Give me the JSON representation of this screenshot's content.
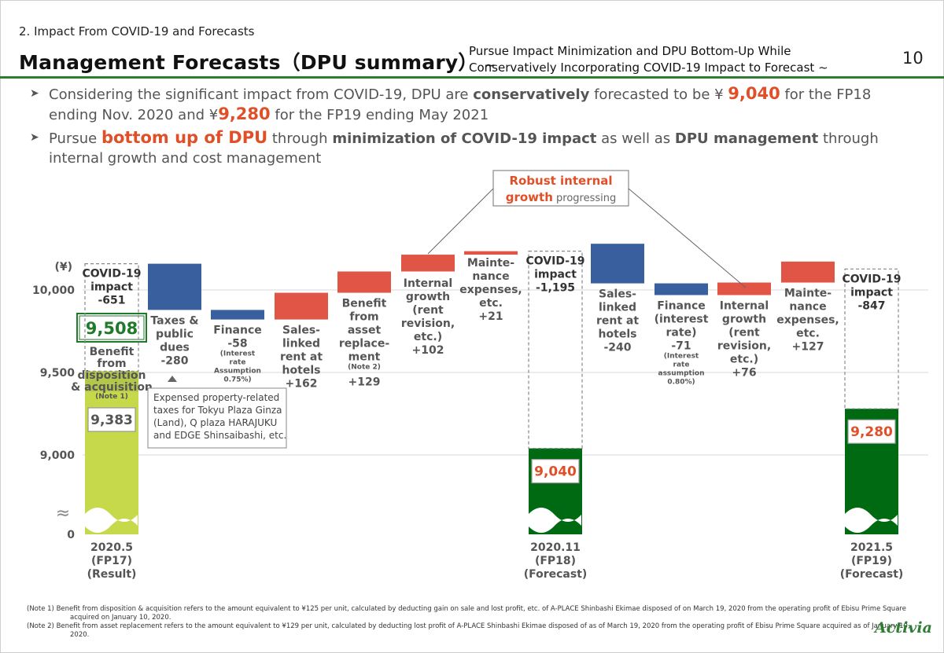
{
  "header": {
    "section": "2. Impact From COVID-19 and Forecasts",
    "title": "Management Forecasts（DPU summary）",
    "tilde": "~",
    "subtitle_line1": "Pursue Impact Minimization and DPU Bottom-Up While",
    "subtitle_line2": "Conservatively Incorporating COVID-19 Impact to Forecast",
    "page_number": "10"
  },
  "bullets": {
    "b1": {
      "t1": "Considering the significant impact from COVID-19, DPU are ",
      "t2": "conservatively",
      "t3": " forecasted to be ¥ ",
      "t4": "9,040",
      "t5": " for the FP18 ending Nov. 2020 and ¥",
      "t6": "9,280",
      "t7": " for the FP19 ending May 2021"
    },
    "b2": {
      "t1": "Pursue ",
      "t2": "bottom up of DPU",
      "t3": " through ",
      "t4": "minimization of COVID-19 impact",
      "t5": " as well as ",
      "t6": "DPU management",
      "t7": " through internal growth and cost management"
    }
  },
  "callout": {
    "line1": "Robust internal",
    "line2_bold": "growth",
    "line2_rest": " progressing"
  },
  "property_note": [
    "Expensed property-related",
    "taxes for Tokyu Plaza Ginza",
    "(Land), Q plaza HARAJUKU",
    "and EDGE Shinsaibashi, etc."
  ],
  "chart_data": {
    "type": "waterfall",
    "unit_label": "(¥)",
    "y_ticks": [
      "10,000",
      "9,500",
      "9,000",
      "0"
    ],
    "axis_break": "≈",
    "colors": {
      "actual": "#c5d94a",
      "forecast": "#006a12",
      "positive": "#e05545",
      "negative": "#3a5f9e",
      "covid_label": "#333333",
      "value_orange": "#e05028"
    },
    "totals": [
      {
        "category": [
          "2020.5",
          "(FP17)",
          "(Result)"
        ],
        "value": 9383,
        "label": "9,383"
      },
      {
        "category": [
          "2020.11",
          "(FP18)",
          "(Forecast)"
        ],
        "value": 9040,
        "label": "9,040"
      },
      {
        "category": [
          "2021.5",
          "(FP19)",
          "(Forecast)"
        ],
        "value": 9280,
        "label": "9,280"
      }
    ],
    "pre_acquisition_total": {
      "value": 9508,
      "label": "9,508"
    },
    "benefit_label": [
      "Benefit",
      "from",
      "disposition",
      "& acquisition"
    ],
    "benefit_note": "(Note 1)",
    "covid_impacts": [
      {
        "lines": [
          "COVID-19",
          "impact",
          "-651"
        ],
        "value": -651
      },
      {
        "lines": [
          "COVID-19",
          "impact",
          "-1,195"
        ],
        "value": -1195
      },
      {
        "lines": [
          "COVID-19",
          "impact",
          "-847"
        ],
        "value": -847
      }
    ],
    "steps": [
      {
        "lines": [
          "Taxes &",
          "public",
          "dues",
          "-280"
        ],
        "value": -280
      },
      {
        "lines": [
          "Finance",
          "-58"
        ],
        "small": [
          "(Interest",
          "rate",
          "Assumption",
          "0.75%)"
        ],
        "value": -58
      },
      {
        "lines": [
          "Sales-",
          "linked",
          "rent at",
          "hotels",
          "+162"
        ],
        "value": 162
      },
      {
        "lines": [
          "Benefit",
          "from",
          "asset",
          "replace-",
          "ment"
        ],
        "small": [
          "(Note 2)"
        ],
        "tail": "+129",
        "value": 129
      },
      {
        "lines": [
          "Internal",
          "growth",
          "(rent",
          "revision,",
          "etc.)",
          "+102"
        ],
        "value": 102
      },
      {
        "lines": [
          "Mainte-",
          "nance",
          "expenses,",
          "etc.",
          "+21"
        ],
        "value": 21
      },
      {
        "lines": [
          "Sales-",
          "linked",
          "rent at",
          "hotels",
          "-240"
        ],
        "value": -240
      },
      {
        "lines": [
          "Finance",
          "(interest",
          "rate)",
          "-71"
        ],
        "small": [
          "(Interest",
          "rate",
          "assumption",
          "0.80%)"
        ],
        "value": -71
      },
      {
        "lines": [
          "Internal",
          "growth",
          "(rent",
          "revision,",
          "etc.)",
          "+76"
        ],
        "value": 76
      },
      {
        "lines": [
          "Mainte-",
          "nance",
          "expenses,",
          "etc.",
          "+127"
        ],
        "value": 127
      }
    ]
  },
  "notes": [
    "(Note 1) Benefit from disposition & acquisition refers to the amount equivalent to ¥125 per unit, calculated by deducting gain on sale and lost profit, etc. of A-PLACE Shinbashi Ekimae disposed of on March 19, 2020 from the operating profit of Ebisu Prime Square acquired on January 10, 2020.",
    "(Note 2) Benefit from asset replacement refers to the amount equivalent to ¥129 per unit, calculated by deducting lost profit of A-PLACE Shinbashi Ekimae disposed of as of March 19, 2020 from the operating profit of Ebisu Prime Square acquired as of January 10, 2020."
  ],
  "logo": "Activia"
}
